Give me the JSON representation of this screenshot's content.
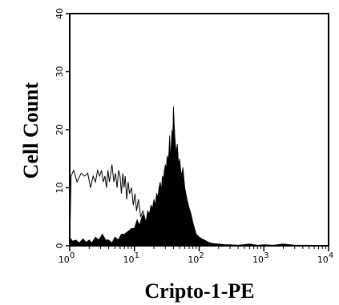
{
  "chart_data": {
    "type": "area",
    "title": "",
    "xlabel": "Cripto-1-PE",
    "ylabel": "Cell Count",
    "x_scale": "log",
    "xlim": [
      1,
      10000
    ],
    "ylim": [
      0,
      40
    ],
    "x_ticks": [
      {
        "base": "10",
        "exp": "0",
        "value": 1
      },
      {
        "base": "10",
        "exp": "1",
        "value": 10
      },
      {
        "base": "10",
        "exp": "2",
        "value": 100
      },
      {
        "base": "10",
        "exp": "3",
        "value": 1000
      },
      {
        "base": "10",
        "exp": "4",
        "value": 10000
      }
    ],
    "y_ticks": [
      "0",
      "10",
      "20",
      "30",
      "40"
    ],
    "grid": false,
    "legend": "none",
    "series": [
      {
        "style": "outline",
        "color": "#000000",
        "x": [
          1.0,
          1.05,
          1.15,
          1.3,
          1.5,
          1.7,
          1.9,
          2.1,
          2.3,
          2.5,
          2.7,
          2.9,
          3.1,
          3.3,
          3.5,
          3.7,
          3.9,
          4.1,
          4.3,
          4.5,
          4.8,
          5.1,
          5.4,
          5.7,
          6.0,
          6.3,
          6.6,
          6.9,
          7.2,
          7.6,
          8.0,
          8.4,
          9.0,
          9.6,
          10.2,
          10.8,
          11.5,
          12.5,
          13.5,
          15.0,
          17.0,
          19.0
        ],
        "y": [
          1,
          12,
          13,
          11,
          12.5,
          12,
          12.5,
          10,
          12,
          11,
          13,
          12,
          13,
          11,
          12,
          10,
          13,
          11,
          12.5,
          14,
          11,
          12.5,
          10,
          13,
          12,
          9,
          12.5,
          10,
          12,
          8,
          11,
          9,
          10,
          7,
          9,
          6,
          8,
          5,
          6,
          4,
          3,
          0
        ]
      },
      {
        "style": "filled",
        "color": "#000000",
        "x": [
          1.0,
          1.1,
          1.25,
          1.4,
          1.6,
          1.8,
          2.0,
          2.2,
          2.5,
          2.8,
          3.2,
          3.6,
          4.0,
          4.5,
          5.0,
          5.6,
          6.3,
          7.0,
          8.0,
          9.0,
          10.0,
          11.0,
          12.0,
          13.0,
          14.0,
          15.0,
          16.0,
          17.0,
          18.0,
          19.0,
          20.0,
          21.0,
          22.0,
          23.0,
          24.0,
          25.0,
          26.0,
          27.0,
          28.0,
          29.0,
          30.0,
          31.0,
          32.0,
          33.0,
          34.0,
          35.0,
          36.0,
          37.0,
          38.0,
          39.0,
          40.0,
          42.0,
          44.0,
          46.0,
          48.0,
          50.0,
          53.0,
          56.0,
          60.0,
          65.0,
          70.0,
          75.0,
          80.0,
          85.0,
          90.0,
          100.0,
          110.0,
          120.0,
          140.0,
          160.0,
          200.0,
          250.0,
          300.0,
          400.0,
          600.0,
          800.0,
          1000.0,
          1400.0,
          2000.0,
          3000.0,
          5000.0,
          10000.0
        ],
        "y": [
          1.5,
          0.8,
          1.0,
          0.5,
          1.2,
          0.6,
          1.0,
          0.5,
          1.5,
          1.0,
          2.0,
          1.0,
          1.0,
          0.5,
          1.5,
          1.0,
          2.0,
          2.0,
          2.5,
          3.0,
          3.0,
          4.5,
          3.5,
          5.0,
          5.5,
          4.0,
          6.0,
          5.5,
          7.0,
          6.5,
          8.0,
          7.0,
          9.0,
          8.5,
          10.0,
          11.0,
          9.5,
          12.0,
          11.5,
          13.0,
          14.0,
          13.0,
          15.5,
          14.5,
          16.0,
          19.0,
          15.0,
          17.0,
          20.0,
          18.0,
          24.0,
          19.0,
          16.0,
          17.5,
          14.0,
          15.0,
          12.0,
          13.5,
          10.0,
          8.0,
          6.5,
          5.5,
          4.0,
          3.0,
          2.0,
          1.5,
          1.2,
          1.0,
          0.6,
          0.4,
          0.3,
          0.2,
          0.2,
          0.1,
          0.3,
          0.1,
          0.2,
          0.1,
          0.3,
          0.1,
          0.1,
          0.0
        ]
      }
    ]
  }
}
